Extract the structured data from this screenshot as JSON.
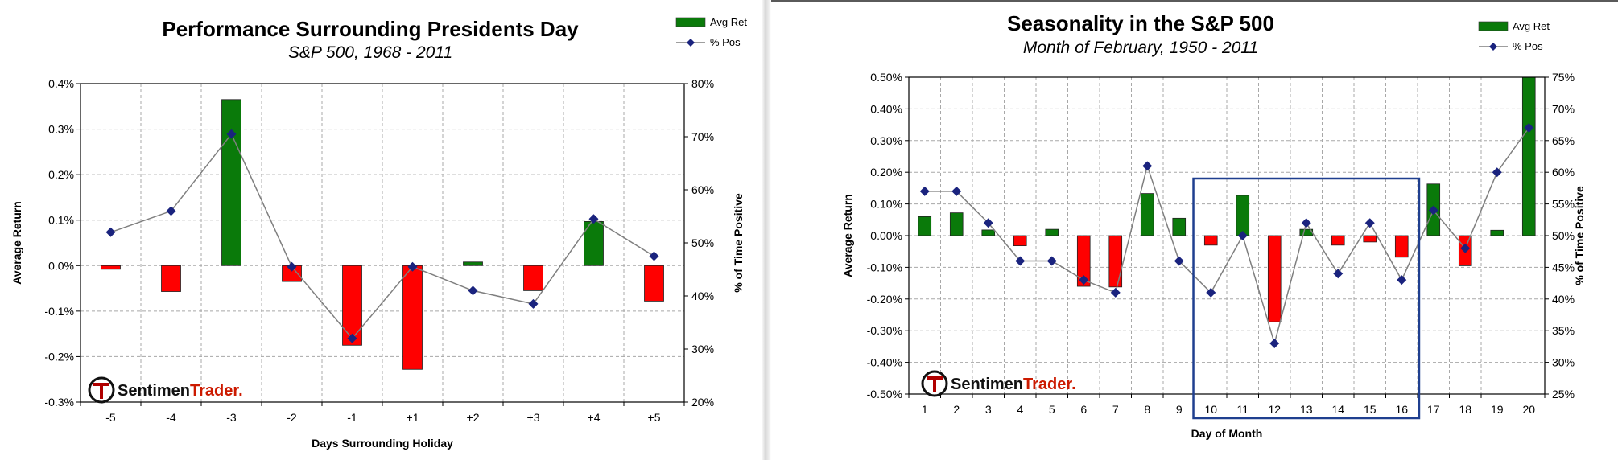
{
  "chart_data": [
    {
      "type": "bar+line",
      "title": "Performance Surrounding Presidents Day",
      "subtitle": "S&P 500, 1968 - 2011",
      "xlabel": "Days Surrounding Holiday",
      "ylabel": "Average Return",
      "y2label": "% of Time Positive",
      "categories": [
        "-5",
        "-4",
        "-3",
        "-2",
        "-1",
        "+1",
        "+2",
        "+3",
        "+4",
        "+5"
      ],
      "ylim": [
        -0.3,
        0.4
      ],
      "yticks": [
        -0.3,
        -0.2,
        -0.1,
        0.0,
        0.1,
        0.2,
        0.3,
        0.4
      ],
      "ytick_labels": [
        "-0.3%",
        "-0.2%",
        "-0.1%",
        "0.0%",
        "0.1%",
        "0.2%",
        "0.3%",
        "0.4%"
      ],
      "y2lim": [
        20,
        80
      ],
      "y2ticks": [
        20,
        30,
        40,
        50,
        60,
        70,
        80
      ],
      "y2tick_labels": [
        "20%",
        "30%",
        "40%",
        "50%",
        "60%",
        "70%",
        "80%"
      ],
      "legend": [
        "Avg Ret",
        "% Pos"
      ],
      "legend_position": "top-right",
      "series": [
        {
          "name": "Avg Ret",
          "values": [
            -0.008,
            -0.057,
            0.365,
            -0.035,
            -0.175,
            -0.228,
            0.008,
            -0.055,
            0.097,
            -0.078
          ]
        },
        {
          "name": "% Pos",
          "values": [
            52,
            56,
            70.5,
            45.5,
            32,
            45.5,
            41,
            38.5,
            54.5,
            47.5
          ]
        }
      ],
      "logo": {
        "part1": "Sentimen",
        "part2": "Trader."
      },
      "colors": {
        "positive": "#0a7a0a",
        "negative": "#ff0000",
        "line": "#7f7f7f",
        "marker": "#1a237e"
      }
    },
    {
      "type": "bar+line",
      "title": "Seasonality in the S&P 500",
      "subtitle": "Month of February, 1950 - 2011",
      "xlabel": "Day of Month",
      "ylabel": "Average Return",
      "y2label": "% of Time Positive",
      "categories": [
        "1",
        "2",
        "3",
        "4",
        "5",
        "6",
        "7",
        "8",
        "9",
        "10",
        "11",
        "12",
        "13",
        "14",
        "15",
        "16",
        "17",
        "18",
        "19",
        "20"
      ],
      "ylim": [
        -0.5,
        0.5
      ],
      "yticks": [
        -0.5,
        -0.4,
        -0.3,
        -0.2,
        -0.1,
        0.0,
        0.1,
        0.2,
        0.3,
        0.4,
        0.5
      ],
      "ytick_labels": [
        "-0.50%",
        "-0.40%",
        "-0.30%",
        "-0.20%",
        "-0.10%",
        "0.00%",
        "0.10%",
        "0.20%",
        "0.30%",
        "0.40%",
        "0.50%"
      ],
      "y2lim": [
        25,
        75
      ],
      "y2ticks": [
        25,
        30,
        35,
        40,
        45,
        50,
        55,
        60,
        65,
        70,
        75
      ],
      "y2tick_labels": [
        "25%",
        "30%",
        "35%",
        "40%",
        "45%",
        "50%",
        "55%",
        "60%",
        "65%",
        "70%",
        "75%"
      ],
      "legend": [
        "Avg Ret",
        "% Pos"
      ],
      "legend_position": "top-right",
      "series": [
        {
          "name": "Avg Ret",
          "values": [
            0.06,
            0.072,
            0.018,
            -0.032,
            0.02,
            -0.16,
            -0.162,
            0.133,
            0.055,
            -0.03,
            0.127,
            -0.272,
            0.02,
            -0.03,
            -0.02,
            -0.068,
            0.163,
            -0.095,
            0.017,
            0.5
          ]
        },
        {
          "name": "% Pos",
          "values": [
            57,
            57,
            52,
            46,
            46,
            43,
            41,
            61,
            46,
            41,
            50,
            33,
            52,
            44,
            52,
            43,
            54,
            48,
            60,
            67
          ]
        }
      ],
      "highlight_box_days": [
        "10",
        "16"
      ],
      "logo": {
        "part1": "Sentimen",
        "part2": "Trader."
      },
      "colors": {
        "positive": "#0a7a0a",
        "negative": "#ff0000",
        "line": "#7f7f7f",
        "marker": "#1a237e",
        "highlight": "#1f3f8f"
      }
    }
  ]
}
